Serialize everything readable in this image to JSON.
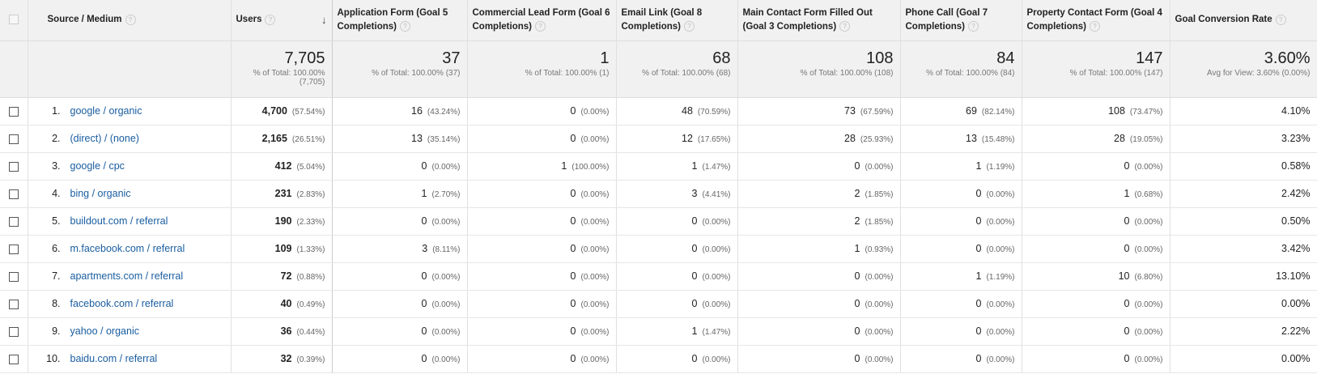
{
  "columns": [
    {
      "label": "Source / Medium"
    },
    {
      "label": "Users"
    },
    {
      "label": "Application Form (Goal 5 Completions)"
    },
    {
      "label": "Commercial Lead Form (Goal 6 Completions)"
    },
    {
      "label": "Email Link (Goal 8 Completions)"
    },
    {
      "label": "Main Contact Form Filled Out (Goal 3 Completions)"
    },
    {
      "label": "Phone Call (Goal 7 Completions)"
    },
    {
      "label": "Property Contact Form (Goal 4 Completions)"
    },
    {
      "label": "Goal Conversion Rate"
    }
  ],
  "help_glyph": "?",
  "sort_glyph": "↓",
  "totals": [
    {
      "value": "7,705",
      "sub": "% of Total: 100.00% (7,705)"
    },
    {
      "value": "37",
      "sub": "% of Total: 100.00% (37)"
    },
    {
      "value": "1",
      "sub": "% of Total: 100.00% (1)"
    },
    {
      "value": "68",
      "sub": "% of Total: 100.00% (68)"
    },
    {
      "value": "108",
      "sub": "% of Total: 100.00% (108)"
    },
    {
      "value": "84",
      "sub": "% of Total: 100.00% (84)"
    },
    {
      "value": "147",
      "sub": "% of Total: 100.00% (147)"
    },
    {
      "value": "3.60%",
      "sub": "Avg for View: 3.60% (0.00%)"
    }
  ],
  "rows": [
    {
      "index": "1.",
      "source": "google / organic",
      "cells": [
        {
          "v": "4,700",
          "p": "(57.54%)"
        },
        {
          "v": "16",
          "p": "(43.24%)"
        },
        {
          "v": "0",
          "p": "(0.00%)"
        },
        {
          "v": "48",
          "p": "(70.59%)"
        },
        {
          "v": "73",
          "p": "(67.59%)"
        },
        {
          "v": "69",
          "p": "(82.14%)"
        },
        {
          "v": "108",
          "p": "(73.47%)"
        },
        {
          "v": "4.10%",
          "p": ""
        }
      ]
    },
    {
      "index": "2.",
      "source": "(direct) / (none)",
      "cells": [
        {
          "v": "2,165",
          "p": "(26.51%)"
        },
        {
          "v": "13",
          "p": "(35.14%)"
        },
        {
          "v": "0",
          "p": "(0.00%)"
        },
        {
          "v": "12",
          "p": "(17.65%)"
        },
        {
          "v": "28",
          "p": "(25.93%)"
        },
        {
          "v": "13",
          "p": "(15.48%)"
        },
        {
          "v": "28",
          "p": "(19.05%)"
        },
        {
          "v": "3.23%",
          "p": ""
        }
      ]
    },
    {
      "index": "3.",
      "source": "google / cpc",
      "cells": [
        {
          "v": "412",
          "p": "(5.04%)"
        },
        {
          "v": "0",
          "p": "(0.00%)"
        },
        {
          "v": "1",
          "p": "(100.00%)"
        },
        {
          "v": "1",
          "p": "(1.47%)"
        },
        {
          "v": "0",
          "p": "(0.00%)"
        },
        {
          "v": "1",
          "p": "(1.19%)"
        },
        {
          "v": "0",
          "p": "(0.00%)"
        },
        {
          "v": "0.58%",
          "p": ""
        }
      ]
    },
    {
      "index": "4.",
      "source": "bing / organic",
      "cells": [
        {
          "v": "231",
          "p": "(2.83%)"
        },
        {
          "v": "1",
          "p": "(2.70%)"
        },
        {
          "v": "0",
          "p": "(0.00%)"
        },
        {
          "v": "3",
          "p": "(4.41%)"
        },
        {
          "v": "2",
          "p": "(1.85%)"
        },
        {
          "v": "0",
          "p": "(0.00%)"
        },
        {
          "v": "1",
          "p": "(0.68%)"
        },
        {
          "v": "2.42%",
          "p": ""
        }
      ]
    },
    {
      "index": "5.",
      "source": "buildout.com / referral",
      "cells": [
        {
          "v": "190",
          "p": "(2.33%)"
        },
        {
          "v": "0",
          "p": "(0.00%)"
        },
        {
          "v": "0",
          "p": "(0.00%)"
        },
        {
          "v": "0",
          "p": "(0.00%)"
        },
        {
          "v": "2",
          "p": "(1.85%)"
        },
        {
          "v": "0",
          "p": "(0.00%)"
        },
        {
          "v": "0",
          "p": "(0.00%)"
        },
        {
          "v": "0.50%",
          "p": ""
        }
      ]
    },
    {
      "index": "6.",
      "source": "m.facebook.com / referral",
      "cells": [
        {
          "v": "109",
          "p": "(1.33%)"
        },
        {
          "v": "3",
          "p": "(8.11%)"
        },
        {
          "v": "0",
          "p": "(0.00%)"
        },
        {
          "v": "0",
          "p": "(0.00%)"
        },
        {
          "v": "1",
          "p": "(0.93%)"
        },
        {
          "v": "0",
          "p": "(0.00%)"
        },
        {
          "v": "0",
          "p": "(0.00%)"
        },
        {
          "v": "3.42%",
          "p": ""
        }
      ]
    },
    {
      "index": "7.",
      "source": "apartments.com / referral",
      "cells": [
        {
          "v": "72",
          "p": "(0.88%)"
        },
        {
          "v": "0",
          "p": "(0.00%)"
        },
        {
          "v": "0",
          "p": "(0.00%)"
        },
        {
          "v": "0",
          "p": "(0.00%)"
        },
        {
          "v": "0",
          "p": "(0.00%)"
        },
        {
          "v": "1",
          "p": "(1.19%)"
        },
        {
          "v": "10",
          "p": "(6.80%)"
        },
        {
          "v": "13.10%",
          "p": ""
        }
      ]
    },
    {
      "index": "8.",
      "source": "facebook.com / referral",
      "cells": [
        {
          "v": "40",
          "p": "(0.49%)"
        },
        {
          "v": "0",
          "p": "(0.00%)"
        },
        {
          "v": "0",
          "p": "(0.00%)"
        },
        {
          "v": "0",
          "p": "(0.00%)"
        },
        {
          "v": "0",
          "p": "(0.00%)"
        },
        {
          "v": "0",
          "p": "(0.00%)"
        },
        {
          "v": "0",
          "p": "(0.00%)"
        },
        {
          "v": "0.00%",
          "p": ""
        }
      ]
    },
    {
      "index": "9.",
      "source": "yahoo / organic",
      "cells": [
        {
          "v": "36",
          "p": "(0.44%)"
        },
        {
          "v": "0",
          "p": "(0.00%)"
        },
        {
          "v": "0",
          "p": "(0.00%)"
        },
        {
          "v": "1",
          "p": "(1.47%)"
        },
        {
          "v": "0",
          "p": "(0.00%)"
        },
        {
          "v": "0",
          "p": "(0.00%)"
        },
        {
          "v": "0",
          "p": "(0.00%)"
        },
        {
          "v": "2.22%",
          "p": ""
        }
      ]
    },
    {
      "index": "10.",
      "source": "baidu.com / referral",
      "cells": [
        {
          "v": "32",
          "p": "(0.39%)"
        },
        {
          "v": "0",
          "p": "(0.00%)"
        },
        {
          "v": "0",
          "p": "(0.00%)"
        },
        {
          "v": "0",
          "p": "(0.00%)"
        },
        {
          "v": "0",
          "p": "(0.00%)"
        },
        {
          "v": "0",
          "p": "(0.00%)"
        },
        {
          "v": "0",
          "p": "(0.00%)"
        },
        {
          "v": "0.00%",
          "p": ""
        }
      ]
    }
  ],
  "colors": {
    "link": "#1a5ea0",
    "header_bg": "#f1f1f1"
  }
}
